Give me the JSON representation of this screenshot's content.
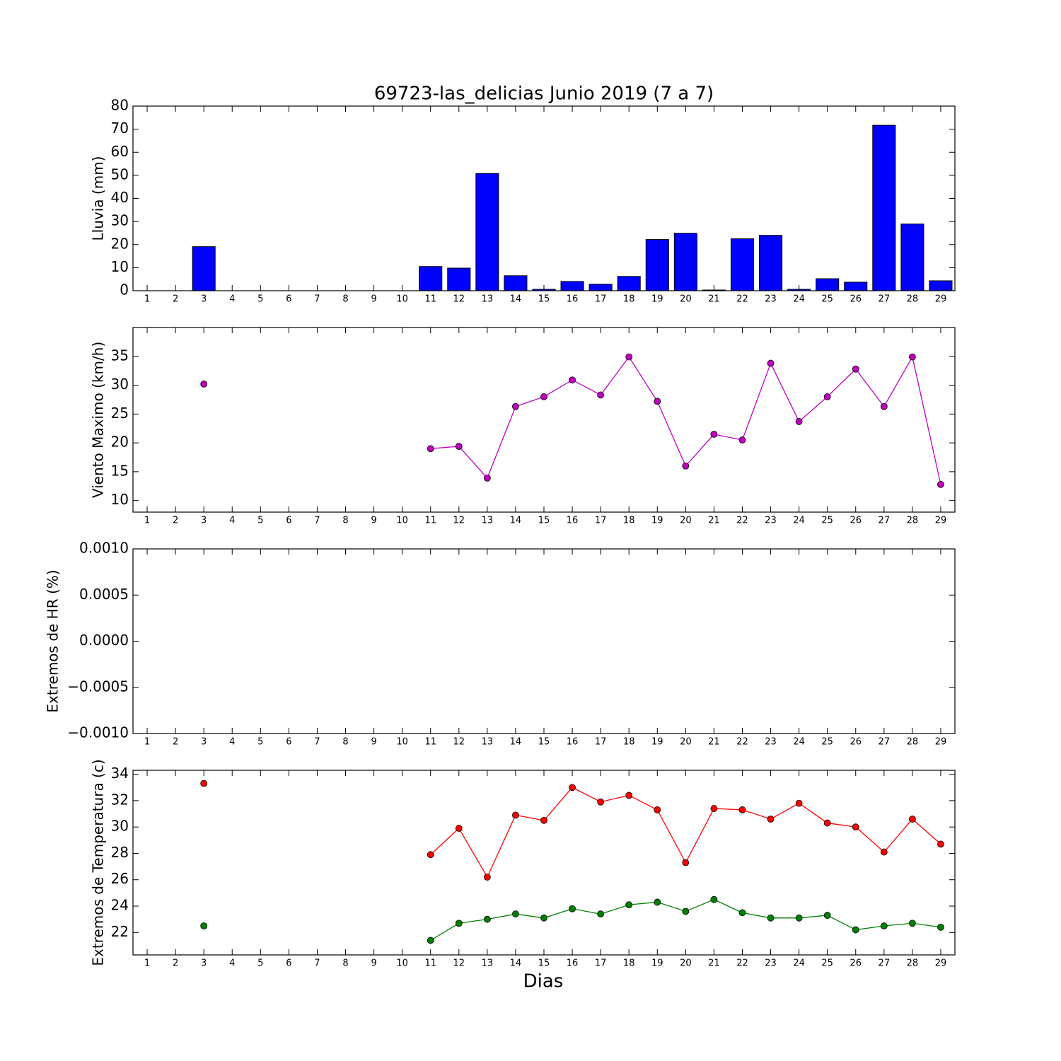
{
  "chart_data": [
    {
      "type": "bar",
      "title": "69723-las_delicias Junio 2019  (7 a 7)",
      "ylabel": "Lluvia (mm)",
      "categories": [
        1,
        2,
        3,
        4,
        5,
        6,
        7,
        8,
        9,
        10,
        11,
        12,
        13,
        14,
        15,
        16,
        17,
        18,
        19,
        20,
        21,
        22,
        23,
        24,
        25,
        26,
        27,
        28,
        29
      ],
      "values": [
        null,
        null,
        19.1,
        null,
        null,
        null,
        null,
        null,
        null,
        null,
        10.5,
        9.8,
        50.8,
        6.5,
        0.6,
        4.0,
        2.8,
        6.2,
        22.2,
        24.9,
        0.3,
        22.5,
        24.0,
        0.6,
        5.2,
        3.7,
        71.7,
        28.9,
        4.3
      ],
      "color": "#0000ff",
      "ylim": [
        0,
        80
      ],
      "yticks": [
        0,
        10,
        20,
        30,
        40,
        50,
        60,
        70,
        80
      ]
    },
    {
      "type": "line",
      "ylabel": "Viento Maximo (km/h)",
      "categories": [
        1,
        2,
        3,
        4,
        5,
        6,
        7,
        8,
        9,
        10,
        11,
        12,
        13,
        14,
        15,
        16,
        17,
        18,
        19,
        20,
        21,
        22,
        23,
        24,
        25,
        26,
        27,
        28,
        29
      ],
      "series": [
        {
          "color": "#bf00bf",
          "values": [
            null,
            null,
            30.2,
            null,
            null,
            null,
            null,
            null,
            null,
            null,
            19.0,
            19.4,
            13.9,
            26.3,
            28.0,
            30.9,
            28.3,
            34.9,
            27.2,
            16.0,
            21.5,
            20.5,
            33.8,
            23.7,
            28.0,
            32.8,
            26.3,
            34.9,
            12.8
          ]
        }
      ],
      "ylim": [
        8,
        40
      ],
      "yticks": [
        10,
        15,
        20,
        25,
        30,
        35
      ]
    },
    {
      "type": "line",
      "ylabel": "Extremos de HR (%)",
      "categories": [
        1,
        2,
        3,
        4,
        5,
        6,
        7,
        8,
        9,
        10,
        11,
        12,
        13,
        14,
        15,
        16,
        17,
        18,
        19,
        20,
        21,
        22,
        23,
        24,
        25,
        26,
        27,
        28,
        29
      ],
      "series": [],
      "ylim": [
        -0.001,
        0.001
      ],
      "yticks": [
        {
          "value": -0.001,
          "label": "−0.0010"
        },
        {
          "value": -0.0005,
          "label": "−0.0005"
        },
        {
          "value": 0,
          "label": "0.0000"
        },
        {
          "value": 0.0005,
          "label": "0.0005"
        },
        {
          "value": 0.001,
          "label": "0.0010"
        }
      ]
    },
    {
      "type": "line",
      "ylabel": "Extremos de Temperatura (c)",
      "xlabel": "Dias",
      "categories": [
        1,
        2,
        3,
        4,
        5,
        6,
        7,
        8,
        9,
        10,
        11,
        12,
        13,
        14,
        15,
        16,
        17,
        18,
        19,
        20,
        21,
        22,
        23,
        24,
        25,
        26,
        27,
        28,
        29
      ],
      "series": [
        {
          "color": "#ff0000",
          "values": [
            null,
            null,
            33.3,
            null,
            null,
            null,
            null,
            null,
            null,
            null,
            27.9,
            29.9,
            26.2,
            30.9,
            30.5,
            33.0,
            31.9,
            32.4,
            31.3,
            27.3,
            31.4,
            31.3,
            30.6,
            31.8,
            30.3,
            30.0,
            28.1,
            30.6,
            28.7
          ]
        },
        {
          "color": "#008000",
          "values": [
            null,
            null,
            22.5,
            null,
            null,
            null,
            null,
            null,
            null,
            null,
            21.4,
            22.7,
            23.0,
            23.4,
            23.1,
            23.8,
            23.4,
            24.1,
            24.3,
            23.6,
            24.5,
            23.5,
            23.1,
            23.1,
            23.3,
            22.2,
            22.5,
            22.7,
            22.4
          ]
        }
      ],
      "ylim": [
        20.3,
        34.3
      ],
      "yticks": [
        22,
        24,
        26,
        28,
        30,
        32,
        34
      ]
    }
  ]
}
